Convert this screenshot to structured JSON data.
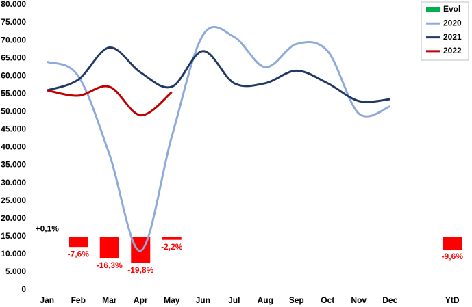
{
  "chart_data": {
    "type": "combo",
    "categories": [
      "Jan",
      "Feb",
      "Mar",
      "Apr",
      "May",
      "Jun",
      "Jul",
      "Aug",
      "Sep",
      "Oct",
      "Nov",
      "Dec",
      null,
      "YtD"
    ],
    "ylim": [
      0,
      80000
    ],
    "yticks": [
      0,
      {
        "value": 5000,
        "label": "5.000"
      },
      {
        "value": 10000,
        "label": "10.000"
      },
      {
        "value": 15000,
        "label": "15.000"
      },
      {
        "value": 20000,
        "label": "20.000"
      },
      {
        "value": 25000,
        "label": "25.000"
      },
      {
        "value": 30000,
        "label": "30.000"
      },
      {
        "value": 35000,
        "label": "35.000"
      },
      {
        "value": 40000,
        "label": "40.000"
      },
      {
        "value": 45000,
        "label": "45.000"
      },
      {
        "value": 50000,
        "label": "50.000"
      },
      {
        "value": 55000,
        "label": "55.000"
      },
      {
        "value": 60000,
        "label": "60.000"
      },
      {
        "value": 65000,
        "label": "65.000"
      },
      {
        "value": 70000,
        "label": "70.000"
      },
      {
        "value": 75000,
        "label": "75.000"
      },
      {
        "value": 80000,
        "label": "80.000"
      }
    ],
    "y2lim": [
      -40,
      175
    ],
    "grid": false,
    "legend": "top-right",
    "series": [
      {
        "name": "Evol",
        "type": "bar",
        "axis": "y2",
        "color": "#00b050",
        "negative_color": "#ff0000",
        "values": [
          0.1,
          -7.6,
          -16.3,
          -19.8,
          -2.2,
          null,
          null,
          null,
          null,
          null,
          null,
          null,
          null,
          -9.6
        ],
        "value_labels": [
          "+0,1%",
          "-7,6%",
          "-16,3%",
          "-19,8%",
          "-2,2%",
          null,
          null,
          null,
          null,
          null,
          null,
          null,
          null,
          "-9,6%"
        ]
      },
      {
        "name": "2020",
        "type": "line",
        "color": "#8eaadb",
        "values": [
          64000,
          60000,
          38000,
          11000,
          43000,
          71500,
          71000,
          62500,
          69000,
          67000,
          49500,
          51500,
          null,
          null
        ]
      },
      {
        "name": "2021",
        "type": "line",
        "color": "#1f3864",
        "values": [
          56000,
          59000,
          68000,
          61000,
          57000,
          67000,
          58000,
          58000,
          61500,
          58000,
          53000,
          53500,
          null,
          null
        ]
      },
      {
        "name": "2022",
        "type": "line",
        "color": "#c00000",
        "values": [
          56000,
          54500,
          57000,
          49000,
          55500,
          null,
          null,
          null,
          null,
          null,
          null,
          null,
          null,
          null
        ]
      }
    ]
  }
}
